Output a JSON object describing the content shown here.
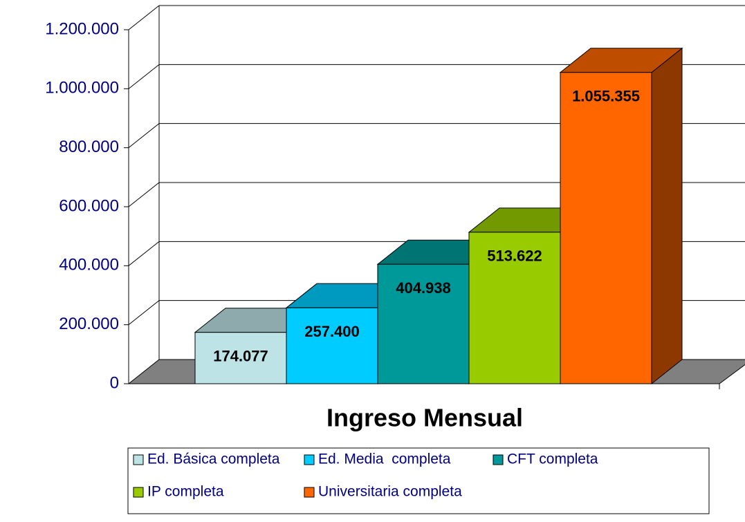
{
  "chart_data": {
    "type": "bar3d",
    "categories": [
      "Ingreso Mensual"
    ],
    "series": [
      {
        "name": "Ed. Básica completa",
        "color": "#bde3e6",
        "values": [
          174077
        ],
        "value_labels": [
          "174.077"
        ]
      },
      {
        "name": "Ed. Media  completa",
        "color": "#00ccff",
        "values": [
          257400
        ],
        "value_labels": [
          "257.400"
        ]
      },
      {
        "name": "CFT completa",
        "color": "#009999",
        "values": [
          404938
        ],
        "value_labels": [
          "404.938"
        ]
      },
      {
        "name": "IP completa",
        "color": "#99cc00",
        "values": [
          513622
        ],
        "value_labels": [
          "513.622"
        ]
      },
      {
        "name": "Universitaria completa",
        "color": "#ff6600",
        "values": [
          1055355
        ],
        "value_labels": [
          "1.055.355"
        ]
      }
    ],
    "ylim": [
      0,
      1200000
    ],
    "yticks": [
      0,
      {
        "value": 200000,
        "label": "200.000"
      },
      {
        "value": 400000,
        "label": "400.000"
      },
      {
        "value": 600000,
        "label": "600.000"
      },
      {
        "value": 800000,
        "label": "800.000"
      },
      {
        "value": 1000000,
        "label": "1.000.000"
      },
      {
        "value": 1200000,
        "label": "1.200.000"
      }
    ],
    "grid": true
  }
}
